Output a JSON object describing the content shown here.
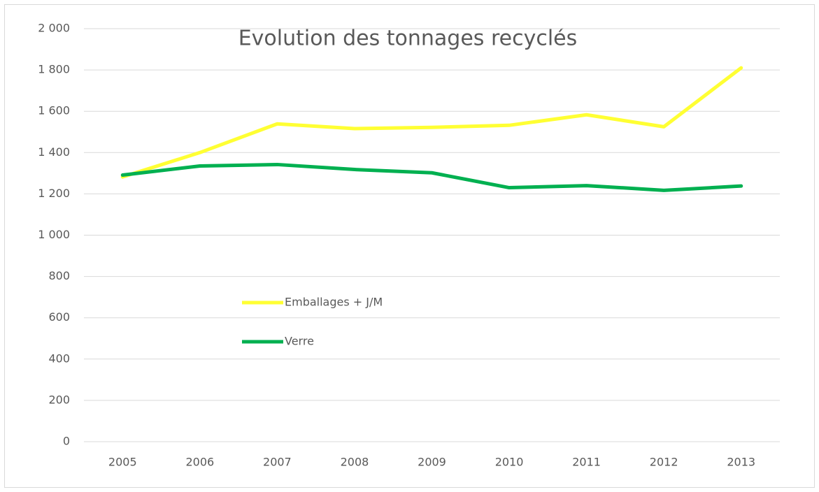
{
  "chart_data": {
    "type": "line",
    "title": "Evolution des tonnages recyclés",
    "categories": [
      "2005",
      "2006",
      "2007",
      "2008",
      "2009",
      "2010",
      "2011",
      "2012",
      "2013"
    ],
    "series": [
      {
        "name": "Emballages + J/M",
        "color": "#ffff33",
        "values": [
          1282,
          1400,
          1539,
          1516,
          1522,
          1532,
          1583,
          1525,
          1810
        ]
      },
      {
        "name": "Verre",
        "color": "#00b050",
        "values": [
          1291,
          1335,
          1342,
          1318,
          1302,
          1230,
          1240,
          1217,
          1238
        ]
      }
    ],
    "ylim": [
      0,
      2000
    ],
    "yticks": [
      0,
      200,
      400,
      600,
      800,
      {
        "value": 1000,
        "label": "1 000"
      },
      {
        "value": 1200,
        "label": "1 200"
      },
      {
        "value": 1400,
        "label": "1 400"
      },
      {
        "value": 1600,
        "label": "1 600"
      },
      {
        "value": 1800,
        "label": "1 800"
      },
      {
        "value": 2000,
        "label": "2 000"
      }
    ],
    "grid": true,
    "legend": "center"
  }
}
